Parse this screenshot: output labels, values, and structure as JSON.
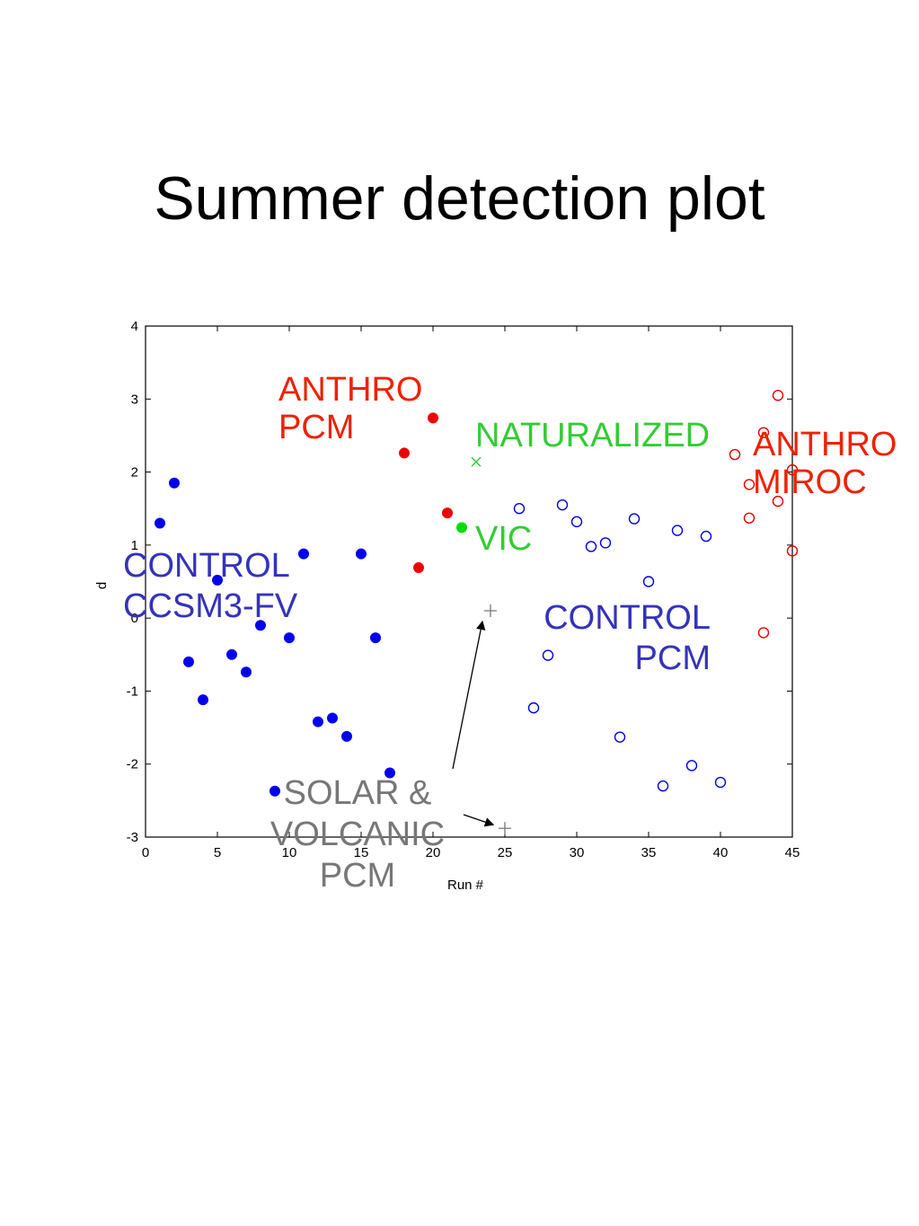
{
  "slide": {
    "title": "Summer detection plot"
  },
  "chart_data": {
    "type": "scatter",
    "title": "",
    "xlabel": "Run #",
    "ylabel": "d",
    "xlim": [
      0,
      45
    ],
    "ylim": [
      -3,
      4
    ],
    "xticks": [
      0,
      5,
      10,
      15,
      20,
      25,
      30,
      35,
      40,
      45
    ],
    "yticks": [
      -3,
      -2,
      -1,
      0,
      1,
      2,
      3,
      4
    ],
    "grid": false,
    "colors": {
      "control_ccsm3": "#0000ee",
      "anthro_pcm": "#ee0000",
      "vic": "#00dd00",
      "naturalized": "#22cc22",
      "control_pcm": "#0000ee",
      "anthro_miroc": "#ee0000",
      "solar_volcanic": "#777777"
    },
    "series": [
      {
        "key": "control_ccsm3",
        "marker": "filled-circle",
        "points": [
          [
            1,
            1.3
          ],
          [
            2,
            1.85
          ],
          [
            3,
            -0.6
          ],
          [
            4,
            -1.12
          ],
          [
            5,
            0.52
          ],
          [
            6,
            -0.5
          ],
          [
            7,
            -0.74
          ],
          [
            8,
            -0.1
          ],
          [
            9,
            -2.37
          ],
          [
            10,
            -0.27
          ],
          [
            11,
            0.88
          ],
          [
            12,
            -1.42
          ],
          [
            13,
            -1.37
          ],
          [
            14,
            -1.62
          ],
          [
            15,
            0.88
          ],
          [
            16,
            -0.27
          ],
          [
            17,
            -2.12
          ]
        ]
      },
      {
        "key": "anthro_pcm",
        "marker": "filled-circle",
        "points": [
          [
            18,
            2.26
          ],
          [
            19,
            0.69
          ],
          [
            20,
            2.74
          ],
          [
            21,
            1.44
          ]
        ]
      },
      {
        "key": "vic",
        "marker": "filled-circle",
        "points": [
          [
            22,
            1.24
          ]
        ]
      },
      {
        "key": "naturalized",
        "marker": "x",
        "points": [
          [
            23,
            2.14
          ]
        ]
      },
      {
        "key": "solar_volcanic",
        "marker": "plus",
        "points": [
          [
            24,
            0.1
          ],
          [
            25,
            -2.88
          ]
        ]
      },
      {
        "key": "control_pcm",
        "marker": "open-circle",
        "points": [
          [
            26,
            1.5
          ],
          [
            27,
            -1.23
          ],
          [
            28,
            -0.51
          ],
          [
            29,
            1.55
          ],
          [
            30,
            1.32
          ],
          [
            31,
            0.98
          ],
          [
            32,
            1.03
          ],
          [
            33,
            -1.63
          ],
          [
            34,
            1.36
          ],
          [
            35,
            0.5
          ],
          [
            36,
            -2.3
          ],
          [
            37,
            1.2
          ],
          [
            38,
            -2.02
          ],
          [
            39,
            1.12
          ],
          [
            40,
            -2.25
          ]
        ]
      },
      {
        "key": "anthro_miroc",
        "marker": "open-circle",
        "points": [
          [
            41,
            2.24
          ],
          [
            42,
            1.83
          ],
          [
            42,
            1.37
          ],
          [
            43,
            2.54
          ],
          [
            43,
            -0.2
          ],
          [
            44,
            3.05
          ],
          [
            44,
            1.6
          ],
          [
            45,
            2.03
          ],
          [
            45,
            0.92
          ]
        ]
      }
    ],
    "annotations": [
      {
        "key": "anthro_pcm",
        "lines": [
          "ANTHRO",
          "PCM"
        ]
      },
      {
        "key": "naturalized",
        "lines": [
          "NATURALIZED"
        ]
      },
      {
        "key": "anthro_miroc",
        "lines": [
          "ANTHRO",
          "MIROC"
        ]
      },
      {
        "key": "vic",
        "lines": [
          "VIC"
        ]
      },
      {
        "key": "control_ccsm3",
        "lines": [
          "CONTROL",
          "CCSM3-FV"
        ]
      },
      {
        "key": "control_pcm",
        "lines": [
          "CONTROL",
          "PCM"
        ]
      },
      {
        "key": "solar_volcanic",
        "lines": [
          "SOLAR &",
          "VOLCANIC",
          "PCM"
        ]
      }
    ]
  }
}
